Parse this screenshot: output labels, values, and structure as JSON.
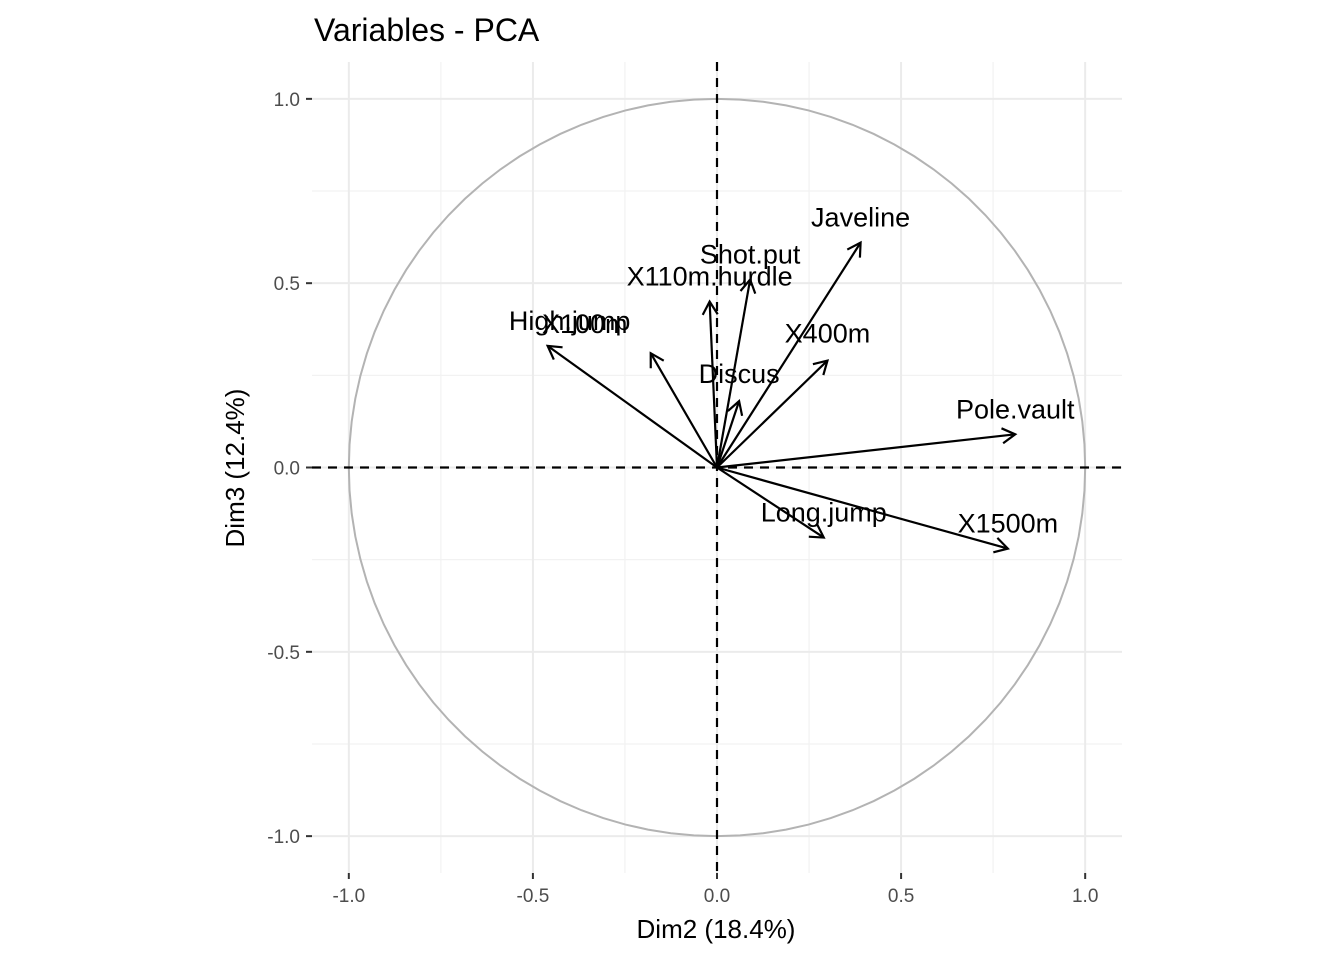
{
  "chart_data": {
    "type": "scatter",
    "title": "Variables - PCA",
    "xlabel": "Dim2 (18.4%)",
    "ylabel": "Dim3 (12.4%)",
    "xlim": [
      -1.1,
      1.1
    ],
    "ylim": [
      -1.1,
      1.1
    ],
    "x_ticks": [
      -1.0,
      -0.5,
      0.0,
      0.5,
      1.0
    ],
    "y_ticks": [
      -1.0,
      -0.5,
      0.0,
      0.5,
      1.0
    ],
    "x_tick_labels": [
      "-1.0",
      "-0.5",
      "0.0",
      "0.5",
      "1.0"
    ],
    "y_tick_labels": [
      "-1.0",
      "-0.5",
      "0.0",
      "0.5",
      "1.0"
    ],
    "grid": true,
    "unit_circle": true,
    "reference_lines": "dashed at x=0 and y=0",
    "colors": {
      "arrow": "#000000",
      "circle": "#b3b3b3",
      "grid": "#ebebeb",
      "tick_text": "#4d4d4d"
    },
    "variables": [
      {
        "name": "X100m",
        "x": -0.18,
        "y": 0.31
      },
      {
        "name": "Long.jump",
        "x": 0.29,
        "y": -0.19
      },
      {
        "name": "Shot.put",
        "x": 0.09,
        "y": 0.51
      },
      {
        "name": "High.jump",
        "x": -0.46,
        "y": 0.33
      },
      {
        "name": "X400m",
        "x": 0.3,
        "y": 0.29
      },
      {
        "name": "X110m.hurdle",
        "x": -0.02,
        "y": 0.45
      },
      {
        "name": "Discus",
        "x": 0.06,
        "y": 0.18
      },
      {
        "name": "Pole.vault",
        "x": 0.81,
        "y": 0.09
      },
      {
        "name": "Javeline",
        "x": 0.39,
        "y": 0.61
      },
      {
        "name": "X1500m",
        "x": 0.79,
        "y": -0.22
      }
    ]
  }
}
